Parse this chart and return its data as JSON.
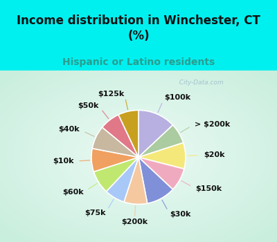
{
  "title": "Income distribution in Winchester, CT\n(%)",
  "subtitle": "Hispanic or Latino residents",
  "title_color": "#111111",
  "subtitle_color": "#2a9d8f",
  "bg_cyan": "#00f0f0",
  "bg_chart_color1": "#c8eedd",
  "bg_chart_color2": "#e8f8f0",
  "labels": [
    "$100k",
    "> $200k",
    "$20k",
    "$150k",
    "$30k",
    "$200k",
    "$75k",
    "$60k",
    "$10k",
    "$40k",
    "$50k",
    "$125k"
  ],
  "values": [
    13,
    7,
    9,
    8,
    10,
    8,
    7,
    8,
    8,
    8,
    7,
    7
  ],
  "colors": [
    "#b8b0e0",
    "#aacca0",
    "#f5e87a",
    "#f0aabf",
    "#8090d8",
    "#f5c8a0",
    "#a8c8f8",
    "#c0e870",
    "#f0a060",
    "#c8b8a0",
    "#e07888",
    "#c8a020"
  ],
  "wedge_edgecolor": "#ffffff",
  "wedge_linewidth": 1.2,
  "label_fontsize": 8,
  "label_fontweight": "bold",
  "label_color": "#111111",
  "watermark": "  City-Data.com",
  "title_fontsize": 12,
  "subtitle_fontsize": 10
}
